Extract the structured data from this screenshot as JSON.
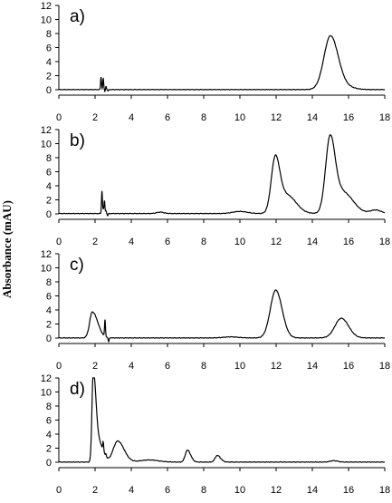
{
  "figure": {
    "ylabel": "Absorbance (mAU)"
  },
  "chart_data": [
    {
      "type": "line",
      "panel_label": "a)",
      "xlim": [
        0,
        18
      ],
      "ylim": [
        0,
        12
      ],
      "x_ticks": [
        0,
        2,
        4,
        6,
        8,
        10,
        12,
        14,
        16,
        18
      ],
      "y_ticks": [
        0,
        2,
        4,
        6,
        8,
        10,
        12
      ],
      "grid": false,
      "baseline": 0.02,
      "gaussian_peaks": [
        {
          "x": 15.0,
          "y": 7.6,
          "w_left": 0.36,
          "w_right": 0.42
        },
        {
          "x": 15.75,
          "y": 0.4,
          "w_left": 0.4,
          "w_right": 0.5
        }
      ],
      "spikes": [
        {
          "x": 2.33,
          "y": 1.8
        },
        {
          "x": 2.45,
          "y": 1.6
        },
        {
          "x": 2.55,
          "y": -0.3
        },
        {
          "x": 2.6,
          "y": 0.5
        },
        {
          "x": 2.72,
          "y": -0.2
        }
      ]
    },
    {
      "type": "line",
      "panel_label": "b)",
      "xlim": [
        0,
        18
      ],
      "ylim": [
        0,
        12
      ],
      "x_ticks": [
        0,
        2,
        4,
        6,
        8,
        10,
        12,
        14,
        16,
        18
      ],
      "y_ticks": [
        0,
        2,
        4,
        6,
        8,
        10,
        12
      ],
      "grid": false,
      "baseline": 0.05,
      "gaussian_peaks": [
        {
          "x": 11.95,
          "y": 7.6,
          "w_left": 0.22,
          "w_right": 0.25
        },
        {
          "x": 12.6,
          "y": 2.6,
          "w_left": 0.4,
          "w_right": 0.5
        },
        {
          "x": 14.98,
          "y": 10.6,
          "w_left": 0.25,
          "w_right": 0.28
        },
        {
          "x": 15.7,
          "y": 3.0,
          "w_left": 0.4,
          "w_right": 0.55
        },
        {
          "x": 10.0,
          "y": 0.3,
          "w_left": 0.4,
          "w_right": 0.4
        },
        {
          "x": 17.5,
          "y": 0.5,
          "w_left": 0.3,
          "w_right": 0.3
        },
        {
          "x": 5.6,
          "y": 0.2,
          "w_left": 0.2,
          "w_right": 0.2
        }
      ],
      "spikes": [
        {
          "x": 2.38,
          "y": 3.2
        },
        {
          "x": 2.45,
          "y": 0.6
        },
        {
          "x": 2.52,
          "y": 1.8
        },
        {
          "x": 2.6,
          "y": 0.4
        },
        {
          "x": 2.7,
          "y": -0.3
        }
      ]
    },
    {
      "type": "line",
      "panel_label": "c)",
      "xlim": [
        0,
        18
      ],
      "ylim": [
        0,
        12
      ],
      "x_ticks": [
        0,
        2,
        4,
        6,
        8,
        10,
        12,
        14,
        16,
        18
      ],
      "y_ticks": [
        0,
        2,
        4,
        6,
        8,
        10,
        12
      ],
      "grid": false,
      "baseline": 0.02,
      "gaussian_peaks": [
        {
          "x": 1.85,
          "y": 3.7,
          "w_left": 0.15,
          "w_right": 0.3
        },
        {
          "x": 11.98,
          "y": 6.8,
          "w_left": 0.3,
          "w_right": 0.35
        },
        {
          "x": 15.6,
          "y": 2.8,
          "w_left": 0.35,
          "w_right": 0.4
        },
        {
          "x": 9.5,
          "y": 0.15,
          "w_left": 0.4,
          "w_right": 0.4
        }
      ],
      "spikes": [
        {
          "x": 2.55,
          "y": 2.4
        },
        {
          "x": 2.75,
          "y": -0.6
        }
      ]
    },
    {
      "type": "line",
      "panel_label": "d)",
      "xlim": [
        0,
        18
      ],
      "ylim": [
        0,
        12
      ],
      "x_ticks": [
        0,
        2,
        4,
        6,
        8,
        10,
        12,
        14,
        16,
        18
      ],
      "y_ticks": [
        0,
        2,
        4,
        6,
        8,
        10,
        12
      ],
      "grid": false,
      "baseline": 0.02,
      "gaussian_peaks": [
        {
          "x": 1.9,
          "y": 13.0,
          "w_left": 0.07,
          "w_right": 0.16
        },
        {
          "x": 2.3,
          "y": 2.2,
          "w_left": 0.15,
          "w_right": 0.2
        },
        {
          "x": 3.25,
          "y": 3.0,
          "w_left": 0.25,
          "w_right": 0.35
        },
        {
          "x": 7.1,
          "y": 1.7,
          "w_left": 0.12,
          "w_right": 0.18
        },
        {
          "x": 8.75,
          "y": 0.95,
          "w_left": 0.12,
          "w_right": 0.18
        },
        {
          "x": 5.0,
          "y": 0.3,
          "w_left": 0.5,
          "w_right": 0.5
        },
        {
          "x": 15.2,
          "y": 0.2,
          "w_left": 0.2,
          "w_right": 0.2
        }
      ],
      "spikes": [
        {
          "x": 2.45,
          "y": 1.2
        },
        {
          "x": 2.6,
          "y": 0.4
        }
      ]
    }
  ]
}
